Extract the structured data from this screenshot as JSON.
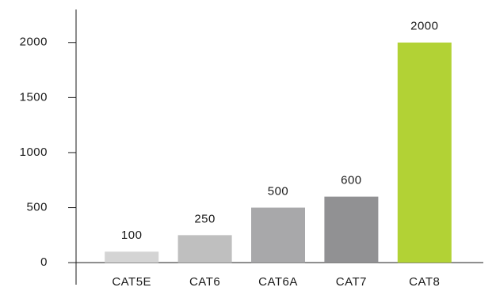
{
  "chart_data": {
    "type": "bar",
    "categories": [
      "CAT5E",
      "CAT6",
      "CAT6A",
      "CAT7",
      "CAT8"
    ],
    "values": [
      100,
      250,
      500,
      600,
      2000
    ],
    "colors": [
      "#d4d4d4",
      "#bfbfbf",
      "#a8a8aa",
      "#919193",
      "#b2d235"
    ],
    "ylim": [
      -200,
      2300
    ],
    "yticks": [
      0,
      500,
      1000,
      1500,
      2000
    ]
  }
}
